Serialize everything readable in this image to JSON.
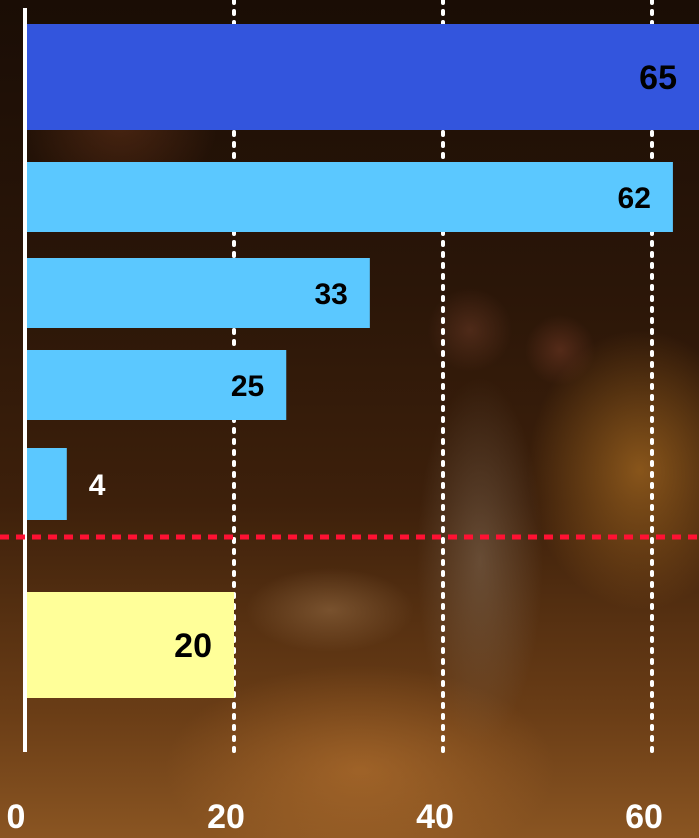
{
  "chart_data": {
    "type": "bar",
    "orientation": "horizontal",
    "title": "",
    "xlabel": "",
    "ylabel": "",
    "xlim": [
      0,
      65
    ],
    "x_ticks": [
      0,
      20,
      40,
      60
    ],
    "x_tick_labels": [
      "0",
      "20",
      "40",
      "60"
    ],
    "grid": "vertical dotted, white",
    "legend": "none",
    "bars": [
      {
        "value": 65,
        "label": "65",
        "color": "#3355dd"
      },
      {
        "value": 62,
        "label": "62",
        "color": "#5bc8ff"
      },
      {
        "value": 33,
        "label": "33",
        "color": "#5bc8ff"
      },
      {
        "value": 25,
        "label": "25",
        "color": "#5bc8ff"
      },
      {
        "value": 4,
        "label": "4",
        "color": "#5bc8ff"
      },
      {
        "value": 20,
        "label": "20",
        "color": "#ffff99"
      }
    ],
    "reference_line": {
      "position": "between 5th and 6th bar",
      "color": "#ff1133",
      "style": "dashed"
    },
    "axis_color": "#ffffff",
    "grid_color": "#ffffff"
  }
}
